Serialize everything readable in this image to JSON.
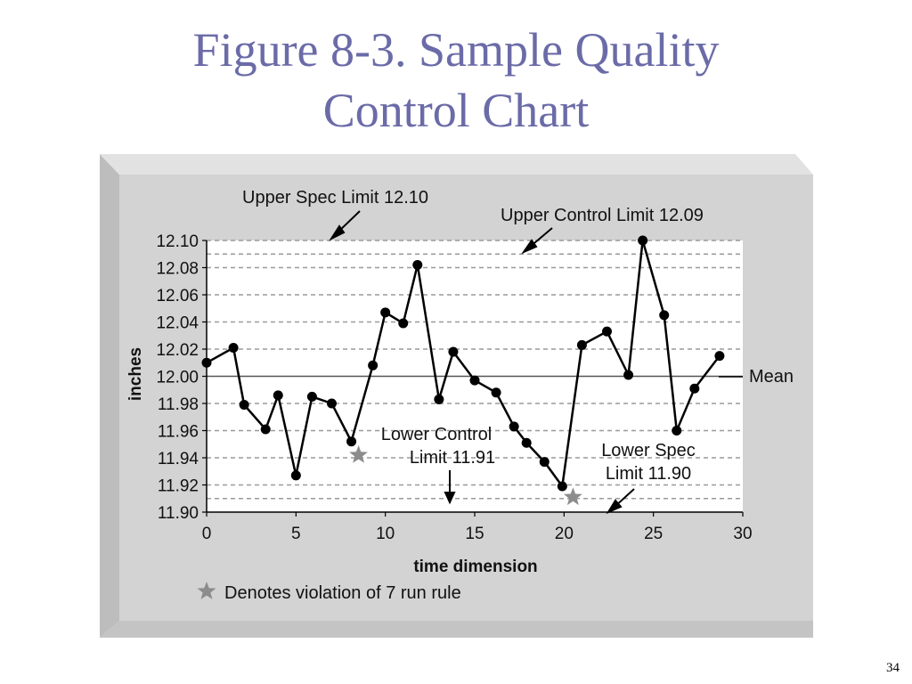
{
  "slide": {
    "title_line1": "Figure 8-3. Sample Quality",
    "title_line2": "Control Chart",
    "page_number": "34"
  },
  "colors": {
    "title": "#6b6ba8",
    "panel": "#d3d3d3",
    "panel_side": "#bdbdbd",
    "plot_bg": "#ffffff",
    "line": "#000000",
    "dashed": "#9a9a9a",
    "mean_line": "#555555",
    "violation_star": "#8c8c8c"
  },
  "chart_data": {
    "type": "line",
    "xlabel": "time dimension",
    "ylabel": "inches",
    "xlim": [
      0,
      30
    ],
    "ylim": [
      11.9,
      12.1
    ],
    "x_ticks": [
      "0",
      "5",
      "10",
      "15",
      "20",
      "25",
      "30"
    ],
    "y_ticks": [
      "12.10",
      "12.08",
      "12.06",
      "12.04",
      "12.02",
      "12.00",
      "11.98",
      "11.96",
      "11.94",
      "11.92",
      "11.90"
    ],
    "grid": "dashed horizontal",
    "series": [
      {
        "x": [
          0,
          1.5,
          2.1,
          3.3,
          4,
          5,
          5.9,
          7,
          8.1,
          9.3,
          10,
          11,
          11.8,
          13,
          13.8,
          15,
          16.2,
          17.2,
          17.9,
          18.9,
          19.9,
          21,
          22.4,
          23.6,
          24.4,
          25.6,
          26.3,
          27.3,
          28.7
        ],
        "y": [
          12.01,
          12.021,
          11.979,
          11.961,
          11.986,
          11.927,
          11.985,
          11.98,
          11.952,
          12.008,
          12.047,
          12.039,
          12.082,
          11.983,
          12.018,
          11.997,
          11.988,
          11.963,
          11.951,
          11.937,
          11.919,
          12.023,
          12.033,
          12.001,
          12.1,
          12.045,
          11.96,
          11.991,
          12.015
        ]
      }
    ],
    "reference_lines": [
      {
        "label": "Upper Spec Limit 12.10",
        "value": 12.1
      },
      {
        "label": "Upper Control Limit 12.09",
        "value": 12.09
      },
      {
        "label": "Mean",
        "value": 12.0
      },
      {
        "label": "Lower Control Limit 11.91",
        "value": 11.91
      },
      {
        "label": "Lower Spec Limit 11.90",
        "value": 11.9
      }
    ],
    "annotations": {
      "upper_spec": "Upper Spec Limit 12.10",
      "upper_control": "Upper Control Limit 12.09",
      "mean": "Mean",
      "lower_control_line1": "Lower Control",
      "lower_control_line2": "Limit 11.91",
      "lower_spec_line1": "Lower Spec",
      "lower_spec_line2": "Limit 11.90"
    },
    "violations": [
      {
        "x": 8.5,
        "y": 11.942
      },
      {
        "x": 20.5,
        "y": 11.911
      }
    ],
    "legend": "Denotes violation of 7 run rule"
  }
}
